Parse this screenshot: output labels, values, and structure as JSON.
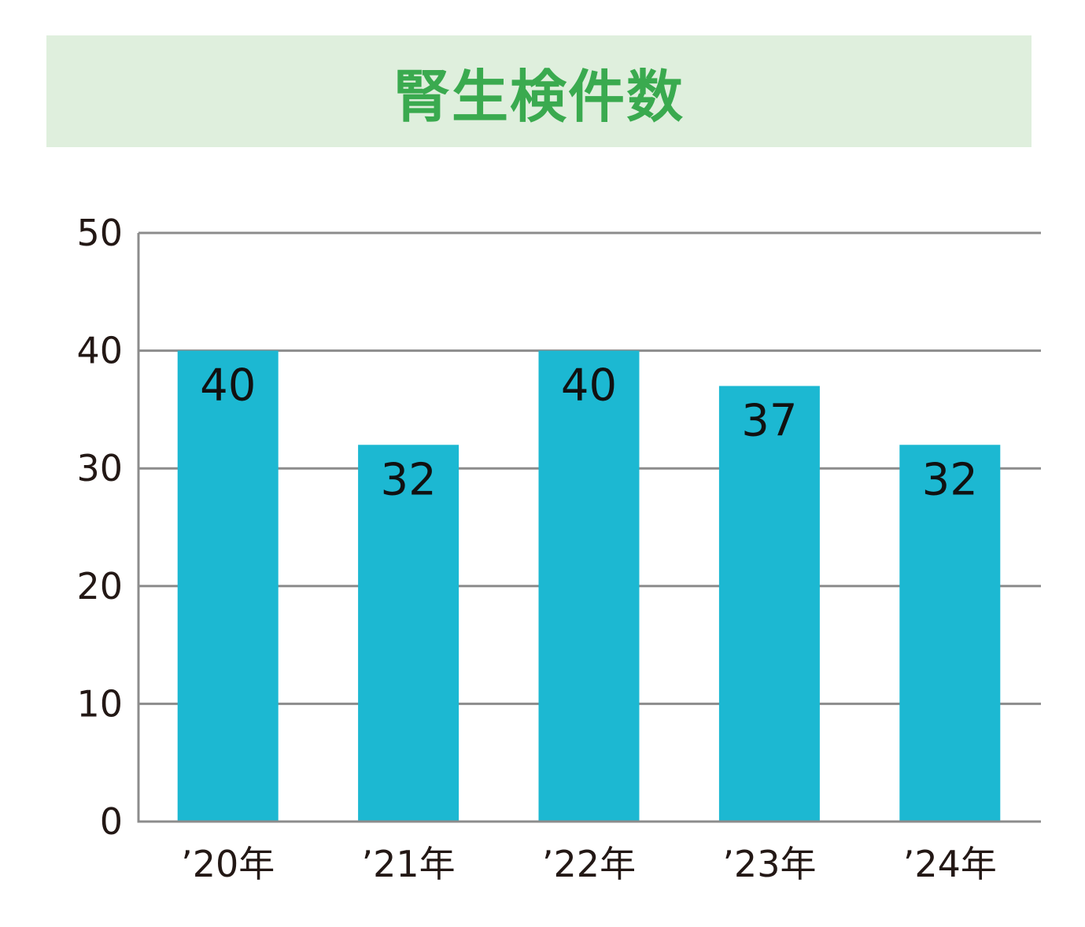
{
  "chart_data": {
    "type": "bar",
    "title": "腎生検件数",
    "categories": [
      "’20年",
      "’21年",
      "’22年",
      "’23年",
      "’24年"
    ],
    "values": [
      40,
      32,
      40,
      37,
      32
    ],
    "ylim": [
      0,
      50
    ],
    "yticks": [
      "0",
      "10",
      "20",
      "30",
      "40",
      "50"
    ],
    "grid": true,
    "data_labels": [
      "40",
      "32",
      "40",
      "37",
      "32"
    ],
    "colors": {
      "bar": "#1cb8d2",
      "grid": "#8c8c8c",
      "title_text": "#3aaa4f",
      "title_background": "#dfefdd"
    }
  }
}
